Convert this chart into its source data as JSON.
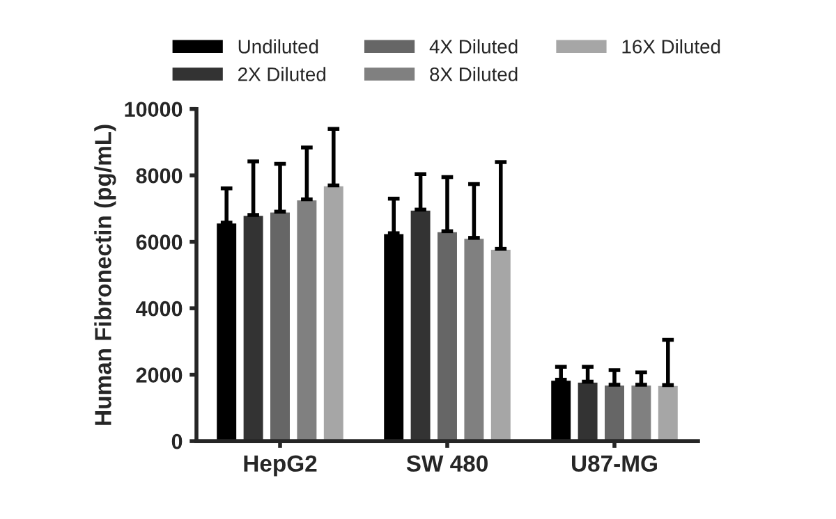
{
  "chart_data": {
    "type": "bar",
    "ylabel": "Human Fibronectin (pg/mL)",
    "categories": [
      "HepG2",
      "SW 480",
      "U87-MG"
    ],
    "series": [
      {
        "name": "Undiluted",
        "color": "#000000",
        "values": [
          6580,
          6260,
          1850
        ],
        "errors": [
          [
            6580,
            7610
          ],
          [
            6260,
            7300
          ],
          [
            1850,
            2240
          ]
        ]
      },
      {
        "name": "2X Diluted",
        "color": "#333333",
        "values": [
          6810,
          6970,
          1790
        ],
        "errors": [
          [
            6810,
            8420
          ],
          [
            6970,
            8040
          ],
          [
            1790,
            2240
          ]
        ]
      },
      {
        "name": "4X Diluted",
        "color": "#666666",
        "values": [
          6910,
          6320,
          1700
        ],
        "errors": [
          [
            6910,
            8350
          ],
          [
            6320,
            7950
          ],
          [
            1700,
            2140
          ]
        ]
      },
      {
        "name": "8X Diluted",
        "color": "#808080",
        "values": [
          7280,
          6120,
          1700
        ],
        "errors": [
          [
            7280,
            8840
          ],
          [
            6120,
            7740
          ],
          [
            1700,
            2070
          ]
        ]
      },
      {
        "name": "16X Diluted",
        "color": "#a6a6a6",
        "values": [
          7700,
          5790,
          1690
        ],
        "errors": [
          [
            7700,
            9400
          ],
          [
            5790,
            8400
          ],
          [
            1690,
            3050
          ]
        ]
      }
    ],
    "ylim": [
      0,
      10000
    ],
    "yticks": [
      0,
      2000,
      4000,
      6000,
      8000,
      10000
    ],
    "grid": false,
    "legend": "top"
  }
}
